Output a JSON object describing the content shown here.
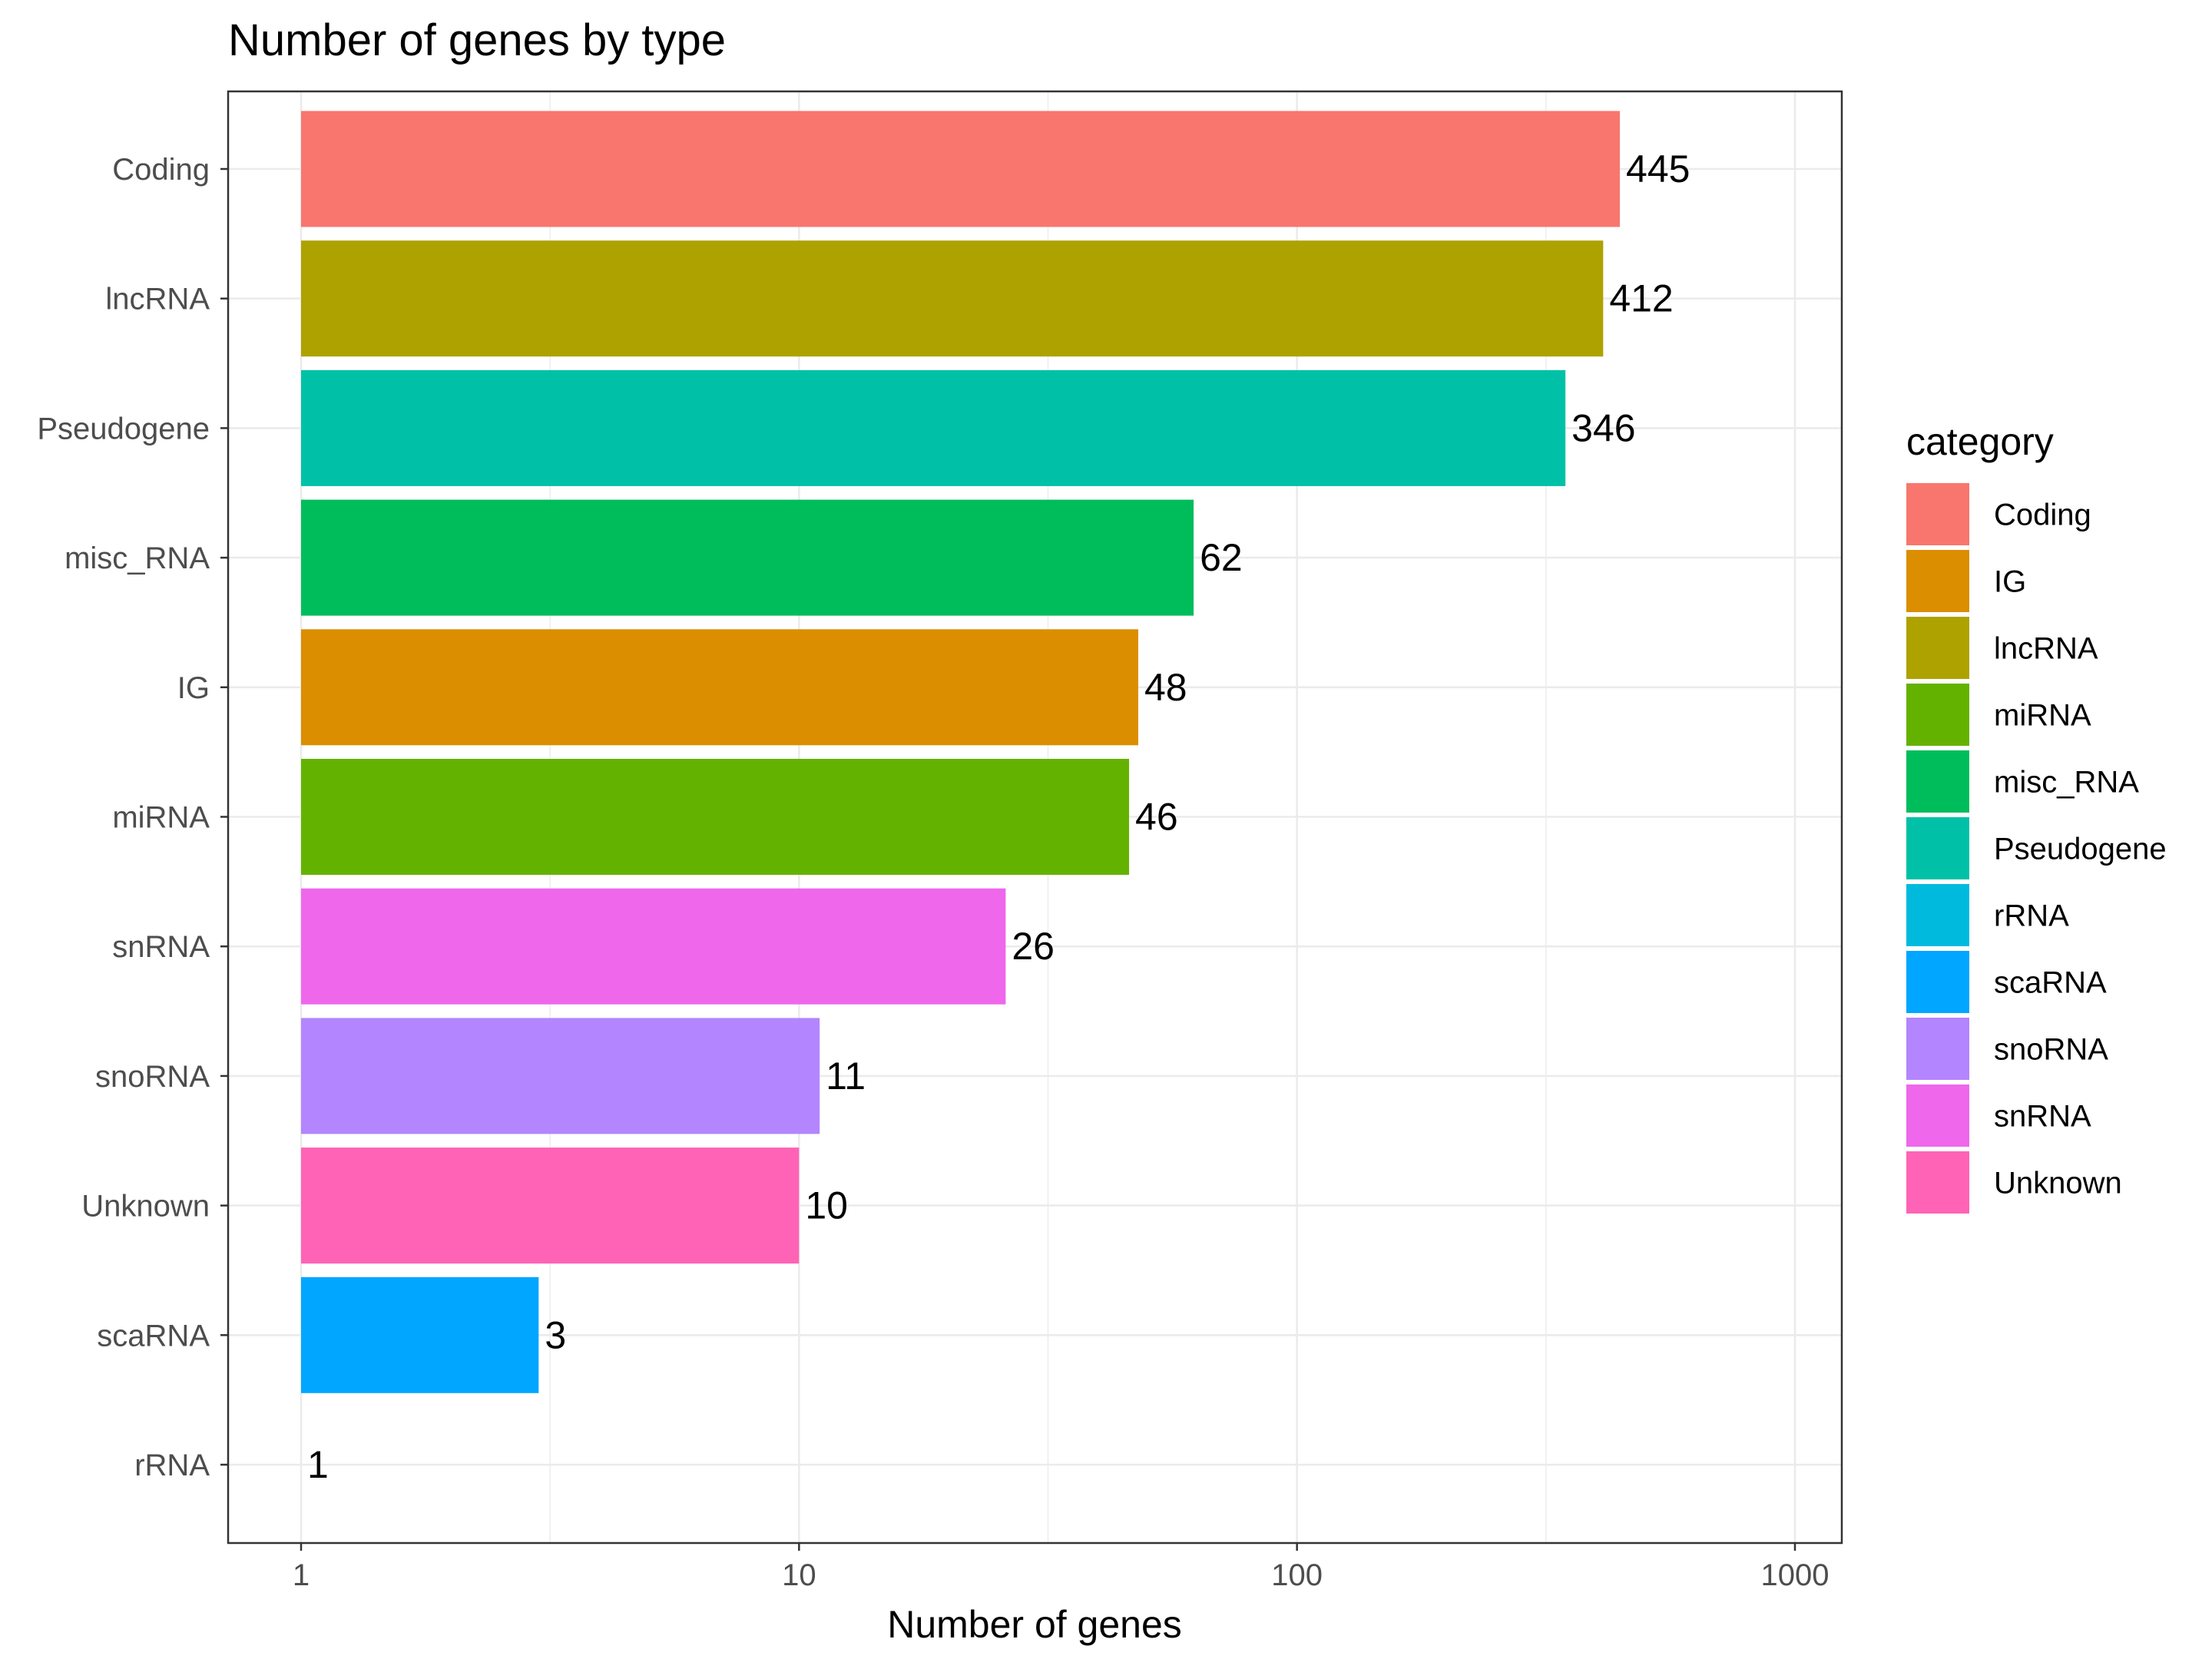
{
  "chart_data": {
    "type": "bar",
    "orientation": "horizontal",
    "title": "Number of genes by type",
    "xlabel": "Number of genes",
    "ylabel": "",
    "x_scale": "log10",
    "xlim": [
      1,
      1000
    ],
    "x_ticks": [
      "1",
      "10",
      "100",
      "1000"
    ],
    "grid": true,
    "categories": [
      "Coding",
      "lncRNA",
      "Pseudogene",
      "misc_RNA",
      "IG",
      "miRNA",
      "snRNA",
      "snoRNA",
      "Unknown",
      "scaRNA",
      "rRNA"
    ],
    "values": [
      445,
      412,
      346,
      62,
      48,
      46,
      26,
      11,
      10,
      3,
      1
    ],
    "value_labels": [
      "445",
      "412",
      "346",
      "62",
      "48",
      "46",
      "26",
      "11",
      "10",
      "3",
      "1"
    ],
    "legend": {
      "title": "category",
      "placement": "right",
      "entries": [
        {
          "label": "Coding",
          "color": "#F8766D"
        },
        {
          "label": "IG",
          "color": "#DB8E00"
        },
        {
          "label": "lncRNA",
          "color": "#AEA200"
        },
        {
          "label": "miRNA",
          "color": "#64B200"
        },
        {
          "label": "misc_RNA",
          "color": "#00BD5C"
        },
        {
          "label": "Pseudogene",
          "color": "#00C1A7"
        },
        {
          "label": "rRNA",
          "color": "#00BADE"
        },
        {
          "label": "scaRNA",
          "color": "#00A6FF"
        },
        {
          "label": "snoRNA",
          "color": "#B385FF"
        },
        {
          "label": "snRNA",
          "color": "#EF67EB"
        },
        {
          "label": "Unknown",
          "color": "#FF63B6"
        }
      ]
    }
  }
}
